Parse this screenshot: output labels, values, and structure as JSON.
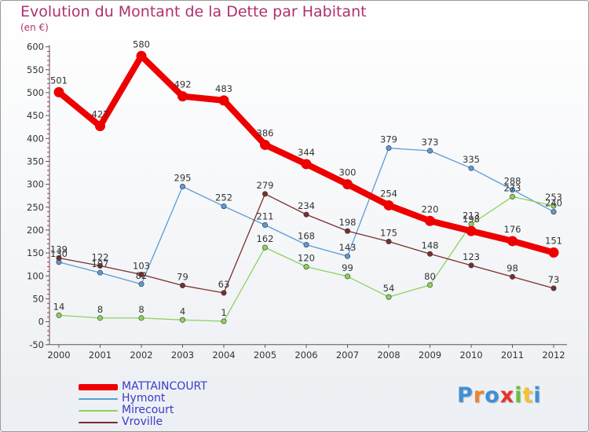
{
  "title": "Evolution du Montant de la Dette par Habitant",
  "subtitle": "(en €)",
  "logo": {
    "text": "Proxiti",
    "colors": [
      "#3f8fd6",
      "#f0822a",
      "#3f8fd6",
      "#e8332a",
      "#6cbf3a",
      "#f4c430",
      "#3f8fd6"
    ]
  },
  "chart_data": {
    "type": "line",
    "x": [
      "2000",
      "2001",
      "2002",
      "2003",
      "2004",
      "2005",
      "2006",
      "2007",
      "2008",
      "2009",
      "2010",
      "2011",
      "2012"
    ],
    "ylim": [
      -50,
      600
    ],
    "yticks": [
      "-50",
      "0",
      "50",
      "100",
      "150",
      "200",
      "250",
      "300",
      "350",
      "400",
      "450",
      "500",
      "550",
      "600"
    ],
    "grid": false,
    "legend_position": "bottom-left",
    "series": [
      {
        "name": "MATTAINCOURT",
        "color": "#ee0000",
        "emphasis": true,
        "values": [
          501,
          427,
          580,
          492,
          483,
          386,
          344,
          300,
          254,
          220,
          198,
          176,
          151
        ],
        "labels": [
          "501",
          "427",
          "580",
          "492",
          "483",
          "386",
          "344",
          "300",
          "254",
          "220",
          "198",
          "176",
          "151"
        ]
      },
      {
        "name": "Hymont",
        "color": "#5b9bd5",
        "emphasis": false,
        "values": [
          130,
          107,
          82,
          295,
          252,
          211,
          168,
          143,
          379,
          373,
          335,
          288,
          240
        ],
        "labels": [
          "130",
          "107",
          "82",
          "295",
          "252",
          "211",
          "168",
          "143",
          "379",
          "373",
          "335",
          "288",
          "240"
        ]
      },
      {
        "name": "Mirecourt",
        "color": "#8ed25c",
        "emphasis": false,
        "values": [
          14,
          8,
          8,
          4,
          1,
          162,
          120,
          99,
          54,
          80,
          213,
          273,
          253
        ],
        "labels": [
          "14",
          "8",
          "8",
          "4",
          "1",
          "162",
          "120",
          "99",
          "54",
          "80",
          "213",
          "273",
          "253"
        ]
      },
      {
        "name": "Vroville",
        "color": "#7b2e2e",
        "emphasis": false,
        "values": [
          139,
          122,
          103,
          79,
          63,
          279,
          234,
          198,
          175,
          148,
          123,
          98,
          73
        ],
        "labels": [
          "139",
          "122",
          "103",
          "79",
          "63",
          "279",
          "234",
          "198",
          "175",
          "148",
          "123",
          "98",
          "73"
        ]
      }
    ]
  }
}
